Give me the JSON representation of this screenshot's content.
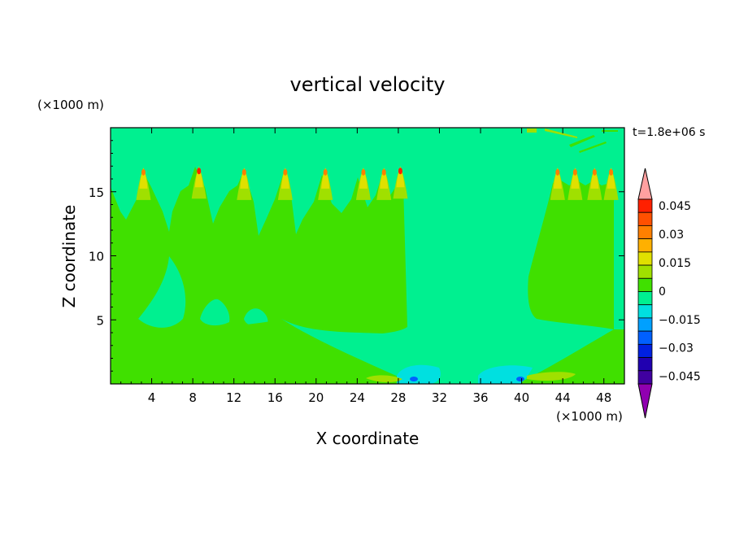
{
  "chart_data": {
    "type": "heatmap",
    "title": "vertical velocity",
    "xlabel": "X coordinate",
    "ylabel": "Z coordinate",
    "x_unit": "(×1000 m)",
    "y_unit": "(×1000 m)",
    "time_label": "t=1.8e+06 s",
    "xlim": [
      0,
      50
    ],
    "ylim": [
      0,
      20
    ],
    "x_ticks": [
      4,
      8,
      12,
      16,
      20,
      24,
      28,
      32,
      36,
      40,
      44,
      48
    ],
    "y_ticks": [
      5,
      10,
      15
    ],
    "colorbar": {
      "tick_values": [
        0.045,
        0.03,
        0.015,
        0,
        -0.015,
        -0.03,
        -0.045
      ],
      "tick_labels": [
        "0.045",
        "0.03",
        "0.015",
        "0",
        "−0.015",
        "−0.03",
        "−0.045"
      ],
      "levels": [
        0.0525,
        0.045,
        0.0375,
        0.03,
        0.0225,
        0.015,
        0.0075,
        0,
        -0.0075,
        -0.015,
        -0.0225,
        -0.03,
        -0.0375,
        -0.045,
        -0.0525
      ],
      "colors": [
        "#ffa0a0",
        "#ff2000",
        "#ff5000",
        "#ff8000",
        "#ffb000",
        "#e0e000",
        "#a0e000",
        "#40e000",
        "#00f090",
        "#00e0e0",
        "#00a0ff",
        "#0060ff",
        "#0020e0",
        "#2000b0",
        "#4000a0",
        "#9000b0"
      ]
    },
    "plumes": [
      {
        "x": 3.2,
        "top": 16.9
      },
      {
        "x": 8.6,
        "top": 17.0
      },
      {
        "x": 13.0,
        "top": 16.9
      },
      {
        "x": 17.0,
        "top": 16.9
      },
      {
        "x": 20.9,
        "top": 16.9
      },
      {
        "x": 24.6,
        "top": 16.9
      },
      {
        "x": 26.6,
        "top": 16.9
      },
      {
        "x": 28.2,
        "top": 17.0
      },
      {
        "x": 43.5,
        "top": 16.9
      },
      {
        "x": 45.2,
        "top": 16.9
      },
      {
        "x": 47.1,
        "top": 16.9
      },
      {
        "x": 48.7,
        "top": 16.9
      }
    ]
  }
}
